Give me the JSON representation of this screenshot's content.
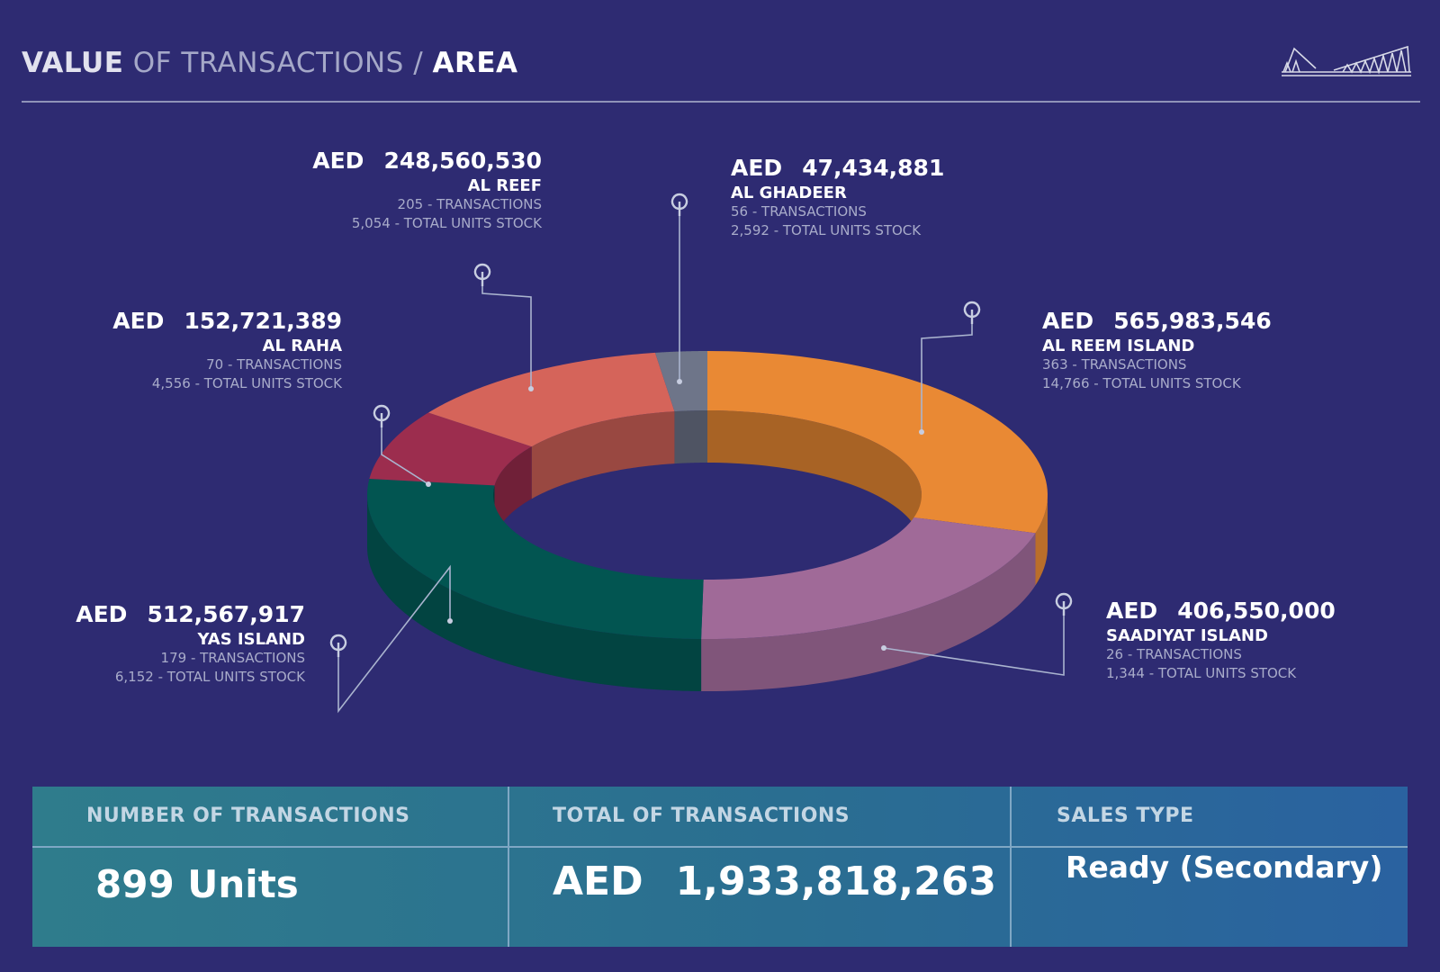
{
  "header": {
    "title_part1": "VALUE",
    "title_part2": " OF TRANSACTIONS / ",
    "title_part3": "AREA",
    "logo_icon": "bridge-logo-icon"
  },
  "currency": "AED",
  "chart_data": {
    "type": "pie",
    "style": "3d-donut",
    "unit": "AED",
    "slices": [
      {
        "area": "AL REEM ISLAND",
        "value": 565983546,
        "value_label": "565,983,546",
        "transactions": "363",
        "units_stock": "14,766",
        "color": "#e98934"
      },
      {
        "area": "SAADIYAT ISLAND",
        "value": 406550000,
        "value_label": "406,550,000",
        "transactions": "26",
        "units_stock": "1,344",
        "color": "#a06a98"
      },
      {
        "area": "YAS ISLAND",
        "value": 512567917,
        "value_label": "512,567,917",
        "transactions": "179",
        "units_stock": "6,152",
        "color": "#025551"
      },
      {
        "area": "AL RAHA",
        "value": 152721389,
        "value_label": "152,721,389",
        "transactions": "70",
        "units_stock": "4,556",
        "color": "#9c2d4e"
      },
      {
        "area": "AL REEF",
        "value": 248560530,
        "value_label": "248,560,530",
        "transactions": "205",
        "units_stock": "5,054",
        "color": "#d5645a"
      },
      {
        "area": "AL GHADEER",
        "value": 47434881,
        "value_label": "47,434,881",
        "transactions": "56",
        "units_stock": "2,592",
        "color": "#6e7589"
      }
    ],
    "transactions_suffix": " - TRANSACTIONS",
    "stock_suffix": " - TOTAL UNITS STOCK"
  },
  "summary": {
    "col1_header": "NUMBER OF TRANSACTIONS",
    "col1_value": "899 Units",
    "col2_header": "TOTAL OF TRANSACTIONS",
    "col2_currency": "AED",
    "col2_value": "1,933,818,263",
    "col3_header": "SALES TYPE",
    "col3_value": "Ready (Secondary)"
  }
}
